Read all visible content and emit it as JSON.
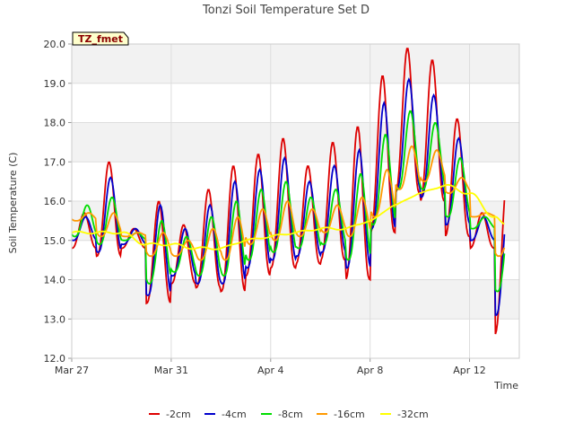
{
  "chart_data": {
    "type": "line",
    "title": "Tonzi Soil Temperature Set D",
    "xlabel": "Time",
    "ylabel": "Soil Temperature (C)",
    "badge": "TZ_fmet",
    "x_range": [
      0,
      18
    ],
    "ylim": [
      12.0,
      20.0
    ],
    "y_ticks": [
      12.0,
      13.0,
      14.0,
      15.0,
      16.0,
      17.0,
      18.0,
      19.0,
      20.0
    ],
    "x_ticks": [
      {
        "day": 0,
        "label": "Mar 27"
      },
      {
        "day": 4,
        "label": "Mar 31"
      },
      {
        "day": 8,
        "label": "Apr 4"
      },
      {
        "day": 12,
        "label": "Apr 8"
      },
      {
        "day": 16,
        "label": "Apr 12"
      }
    ],
    "series": [
      {
        "name": "-2cm",
        "color": "#dd0000",
        "daily_min": [
          14.8,
          14.6,
          14.8,
          13.4,
          13.9,
          13.8,
          13.7,
          14.1,
          14.3,
          14.4,
          14.5,
          14.0,
          15.2,
          16.2,
          16.0,
          15.1,
          14.8,
          12.6
        ],
        "daily_max": [
          15.7,
          17.0,
          15.3,
          16.0,
          15.4,
          16.3,
          16.9,
          17.2,
          17.6,
          16.9,
          17.5,
          17.9,
          19.2,
          19.9,
          19.6,
          18.1,
          15.7,
          16.5
        ]
      },
      {
        "name": "-4cm",
        "color": "#0000cc",
        "daily_min": [
          15.0,
          14.7,
          14.9,
          13.6,
          14.1,
          13.9,
          13.9,
          14.3,
          14.5,
          14.6,
          14.7,
          14.3,
          15.3,
          16.3,
          16.1,
          15.4,
          15.0,
          13.1
        ],
        "daily_max": [
          15.6,
          16.6,
          15.3,
          15.9,
          15.3,
          15.9,
          16.5,
          16.8,
          17.1,
          16.5,
          16.9,
          17.3,
          18.5,
          19.1,
          18.7,
          17.6,
          15.6,
          16.0
        ]
      },
      {
        "name": "-8cm",
        "color": "#00dd00",
        "daily_min": [
          15.1,
          14.9,
          15.0,
          13.9,
          14.2,
          14.1,
          14.1,
          14.5,
          14.7,
          14.8,
          14.9,
          14.5,
          15.4,
          16.3,
          16.3,
          15.6,
          15.3,
          13.7
        ],
        "daily_max": [
          15.9,
          16.1,
          15.2,
          15.5,
          15.1,
          15.6,
          16.0,
          16.3,
          16.5,
          16.1,
          16.3,
          16.7,
          17.7,
          18.3,
          18.0,
          17.1,
          15.6,
          15.6
        ]
      },
      {
        "name": "-16cm",
        "color": "#ff9900",
        "daily_min": [
          15.5,
          15.1,
          15.1,
          14.6,
          14.6,
          14.5,
          14.5,
          14.9,
          15.0,
          15.1,
          15.2,
          15.1,
          15.6,
          16.3,
          16.5,
          16.2,
          15.6,
          14.6
        ],
        "daily_max": [
          15.7,
          15.7,
          15.2,
          15.2,
          15.0,
          15.3,
          15.6,
          15.8,
          16.0,
          15.8,
          15.9,
          16.1,
          16.8,
          17.4,
          17.3,
          16.6,
          15.7,
          15.3
        ]
      },
      {
        "name": "-32cm",
        "color": "#ffff00",
        "points": [
          [
            0,
            15.2
          ],
          [
            1,
            15.2
          ],
          [
            2,
            15.2
          ],
          [
            3,
            14.9
          ],
          [
            4,
            14.9
          ],
          [
            5,
            14.8
          ],
          [
            6,
            14.8
          ],
          [
            7,
            15.0
          ],
          [
            8,
            15.1
          ],
          [
            9,
            15.2
          ],
          [
            10,
            15.3
          ],
          [
            11,
            15.3
          ],
          [
            12,
            15.5
          ],
          [
            13,
            15.9
          ],
          [
            14,
            16.2
          ],
          [
            15,
            16.4
          ],
          [
            16,
            16.2
          ],
          [
            17,
            15.6
          ],
          [
            17.4,
            15.4
          ]
        ]
      }
    ],
    "legend_position": "bottom",
    "grid": true
  }
}
